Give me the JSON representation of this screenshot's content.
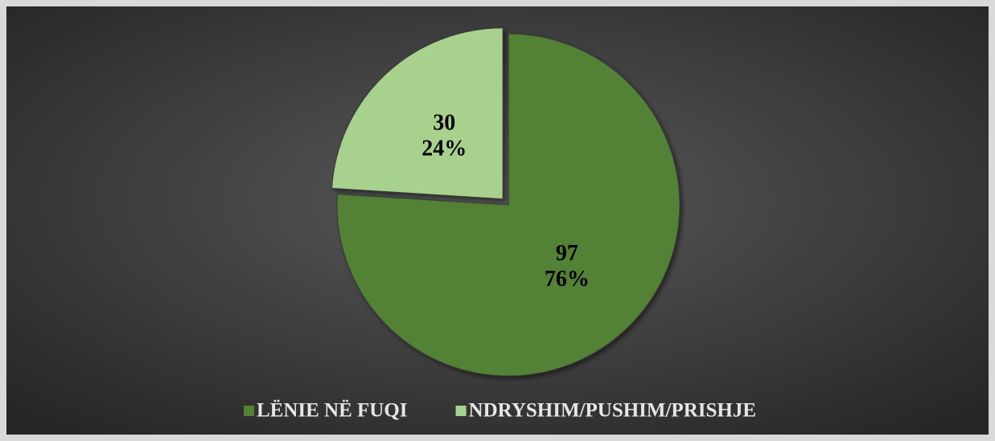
{
  "chart_data": {
    "type": "pie",
    "categories": [
      "LËNIE NË FUQI",
      "NDRYSHIM/PUSHIM/PRISHJE"
    ],
    "values": [
      97,
      30
    ],
    "percent_values": [
      76,
      24
    ],
    "percent_labels": [
      "76%",
      "24%"
    ],
    "colors": [
      "#538135",
      "#a9d18e"
    ],
    "exploded": [
      false,
      true
    ],
    "legend": "bottom"
  }
}
